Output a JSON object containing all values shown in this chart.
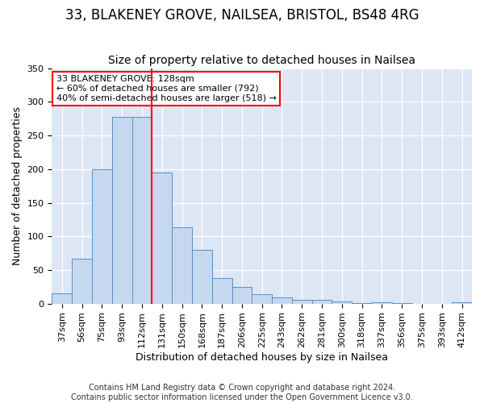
{
  "title1": "33, BLAKENEY GROVE, NAILSEA, BRISTOL, BS48 4RG",
  "title2": "Size of property relative to detached houses in Nailsea",
  "xlabel": "Distribution of detached houses by size in Nailsea",
  "ylabel": "Number of detached properties",
  "footer1": "Contains HM Land Registry data © Crown copyright and database right 2024.",
  "footer2": "Contains public sector information licensed under the Open Government Licence v3.0.",
  "bar_labels": [
    "37sqm",
    "56sqm",
    "75sqm",
    "93sqm",
    "112sqm",
    "131sqm",
    "150sqm",
    "168sqm",
    "187sqm",
    "206sqm",
    "225sqm",
    "243sqm",
    "262sqm",
    "281sqm",
    "300sqm",
    "318sqm",
    "337sqm",
    "356sqm",
    "375sqm",
    "393sqm",
    "412sqm"
  ],
  "bar_values": [
    15,
    67,
    200,
    278,
    278,
    195,
    113,
    80,
    38,
    25,
    14,
    9,
    6,
    6,
    3,
    1,
    2,
    1,
    0,
    0,
    2
  ],
  "bar_color": "#c5d8f0",
  "bar_edge_color": "#5a8fc2",
  "red_line_x": 4.5,
  "annotation_line1": "33 BLAKENEY GROVE: 128sqm",
  "annotation_line2": "← 60% of detached houses are smaller (792)",
  "annotation_line3": "40% of semi-detached houses are larger (518) →",
  "annotation_box_color": "white",
  "annotation_box_edge_color": "red",
  "ylim": [
    0,
    350
  ],
  "yticks": [
    0,
    50,
    100,
    150,
    200,
    250,
    300,
    350
  ],
  "plot_background": "#dce6f5",
  "grid_color": "white",
  "title1_fontsize": 12,
  "title2_fontsize": 10,
  "axis_label_fontsize": 9,
  "tick_fontsize": 8,
  "footer_fontsize": 7,
  "annotation_fontsize": 8
}
